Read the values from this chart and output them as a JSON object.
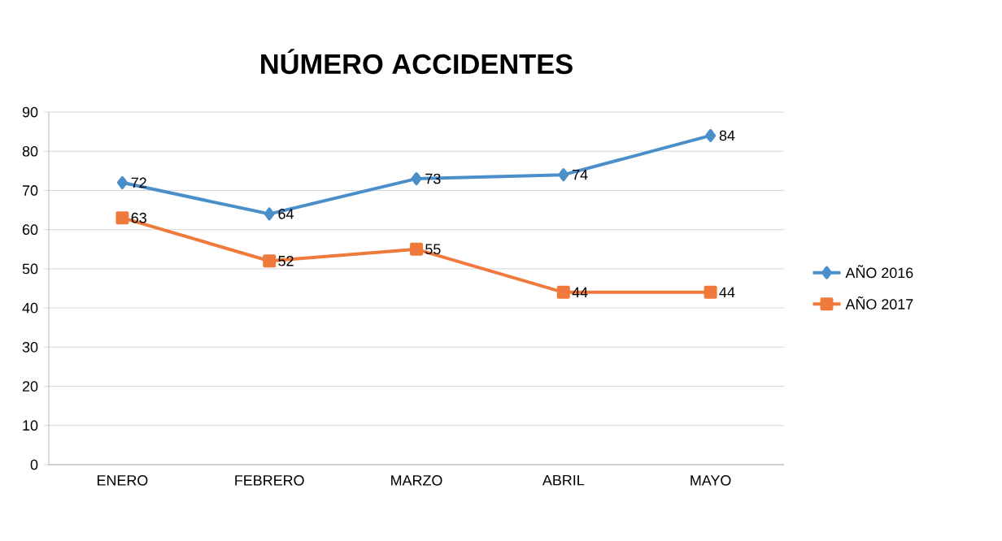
{
  "chart_data": {
    "type": "line",
    "title": "NÚMERO ACCIDENTES",
    "categories": [
      "ENERO",
      "FEBRERO",
      "MARZO",
      "ABRIL",
      "MAYO"
    ],
    "series": [
      {
        "name": "AÑO 2016",
        "color": "#4a8fc9",
        "marker": "diamond",
        "values": [
          72,
          64,
          73,
          74,
          84
        ]
      },
      {
        "name": "AÑO 2017",
        "color": "#f07a3c",
        "marker": "square",
        "values": [
          63,
          52,
          55,
          44,
          44
        ]
      }
    ],
    "ylim": [
      0,
      90
    ],
    "yticks": [
      0,
      10,
      20,
      30,
      40,
      50,
      60,
      70,
      80,
      90
    ],
    "grid": "y",
    "legend": "right",
    "data_labels": true
  }
}
